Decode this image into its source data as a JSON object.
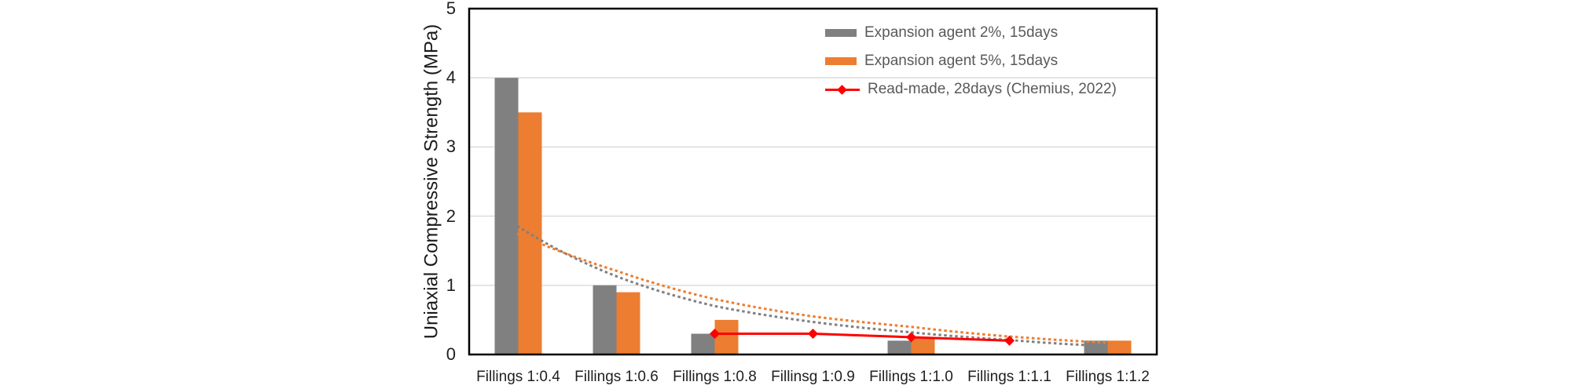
{
  "chart_data": {
    "type": "bar",
    "title": "",
    "xlabel": "",
    "ylabel": "Uniaxial Compressive Strength (MPa)",
    "ylim": [
      0,
      5
    ],
    "ytick_labels": [
      "0",
      "1",
      "2",
      "3",
      "4",
      "5"
    ],
    "grid": "horizontal gridlines at 1,2,3,4, light gray; full black plot border",
    "legend_position": "top-right inside plot area",
    "categories": [
      "Fillings 1:0.4",
      "Fillings 1:0.6",
      "Fillings 1:0.8",
      "Fillinsg 1:0.9",
      "Fillings 1:1.0",
      "Fillings 1:1.1",
      "Fillings 1:1.2"
    ],
    "series": [
      {
        "name": "Expansion agent 2%, 15days",
        "type": "bar",
        "color": "#808080",
        "values": [
          4.0,
          1.0,
          0.3,
          null,
          0.2,
          null,
          0.2
        ]
      },
      {
        "name": "Expansion agent 5%, 15days",
        "type": "bar",
        "color": "#ED7D31",
        "values": [
          3.5,
          0.9,
          0.5,
          null,
          0.25,
          null,
          0.2
        ]
      },
      {
        "name": "Read-made, 28days (Chemius, 2022)",
        "type": "line",
        "color": "#FF0000",
        "marker": "diamond",
        "values": [
          null,
          null,
          0.3,
          0.3,
          0.25,
          0.2,
          null
        ]
      }
    ],
    "trendlines": [
      {
        "for": "Expansion agent 2%, 15days",
        "style": "dotted",
        "color": "#808080",
        "values": [
          1.85,
          1.13,
          0.7,
          0.47,
          0.32,
          0.21,
          0.12
        ],
        "extend_categories": 0
      },
      {
        "for": "Expansion agent 5%, 15days",
        "style": "dotted",
        "color": "#ED7D31",
        "values": [
          1.74,
          1.21,
          0.8,
          0.55,
          0.4,
          0.26,
          0.17
        ],
        "extend_categories": 0.22
      }
    ]
  },
  "colors": {
    "background": "#FFFFFF",
    "gridline": "#D9D9D9",
    "plot_border": "#000000",
    "tick_label": "#1F1F1F",
    "legend_text": "#595959",
    "bar_gray": "#808080",
    "bar_orange": "#ED7D31",
    "line_red": "#FF0000"
  }
}
